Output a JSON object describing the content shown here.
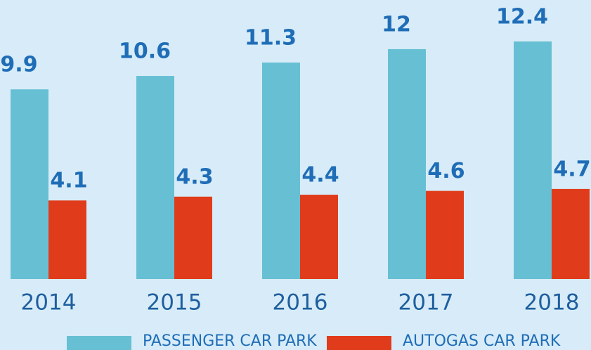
{
  "chart_data": {
    "type": "bar",
    "categories": [
      "2014",
      "2015",
      "2016",
      "2017",
      "2018"
    ],
    "series": [
      {
        "name": "PASSENGER CAR PARK",
        "color": "#67bfd4",
        "values": [
          9.9,
          10.6,
          11.3,
          12,
          12.4
        ]
      },
      {
        "name": "AUTOGAS CAR PARK",
        "color": "#e03c1b",
        "values": [
          4.1,
          4.3,
          4.4,
          4.6,
          4.7
        ]
      }
    ]
  }
}
